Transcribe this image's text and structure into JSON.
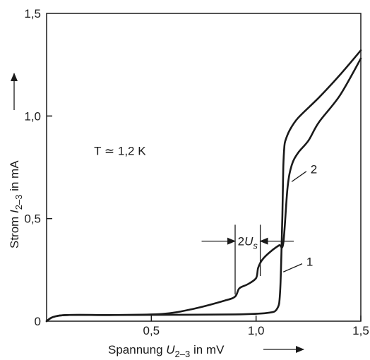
{
  "chart_data": {
    "type": "line",
    "title": "",
    "xlabel": {
      "prefix": "Spannung ",
      "symbol": "U",
      "subscript": "2–3",
      "suffix": " in mV"
    },
    "ylabel": {
      "prefix": "Strom ",
      "symbol": "I",
      "subscript": "2–3",
      "suffix": " in mA"
    },
    "xlim": [
      0,
      1.5
    ],
    "ylim": [
      0,
      1.5
    ],
    "xticks": [
      {
        "value": 0.5,
        "label": "0,5"
      },
      {
        "value": 1.0,
        "label": "1,0"
      },
      {
        "value": 1.5,
        "label": "1,5"
      }
    ],
    "yticks": [
      {
        "value": 0,
        "label": "0"
      },
      {
        "value": 0.5,
        "label": "0,5"
      },
      {
        "value": 1.0,
        "label": "1,0"
      },
      {
        "value": 1.5,
        "label": "1,5"
      }
    ],
    "grid": false,
    "annotations": {
      "temperature": "T ≃ 1,2 K",
      "gap_symbol": "U",
      "gap_prefix": "2",
      "gap_subscript": "s",
      "gap_x_left": 0.9,
      "gap_x_right": 1.02
    },
    "series": [
      {
        "name": "1",
        "x": [
          0.0,
          0.03,
          0.1,
          0.3,
          0.6,
          0.9,
          1.05,
          1.1,
          1.115,
          1.125,
          1.13,
          1.135,
          1.14,
          1.16,
          1.2,
          1.3,
          1.4,
          1.5
        ],
        "y": [
          0.0,
          0.02,
          0.03,
          0.03,
          0.031,
          0.033,
          0.04,
          0.06,
          0.15,
          0.5,
          0.75,
          0.85,
          0.88,
          0.93,
          0.99,
          1.09,
          1.2,
          1.32
        ]
      },
      {
        "name": "2",
        "x": [
          0.0,
          0.03,
          0.1,
          0.3,
          0.55,
          0.7,
          0.85,
          0.9,
          0.92,
          0.96,
          1.0,
          1.01,
          1.03,
          1.07,
          1.11,
          1.13,
          1.15,
          1.17,
          1.2,
          1.25,
          1.3,
          1.4,
          1.5
        ],
        "y": [
          0.0,
          0.02,
          0.03,
          0.03,
          0.035,
          0.06,
          0.1,
          0.12,
          0.16,
          0.18,
          0.21,
          0.26,
          0.3,
          0.34,
          0.37,
          0.38,
          0.65,
          0.76,
          0.82,
          0.88,
          0.97,
          1.1,
          1.28
        ]
      }
    ]
  }
}
